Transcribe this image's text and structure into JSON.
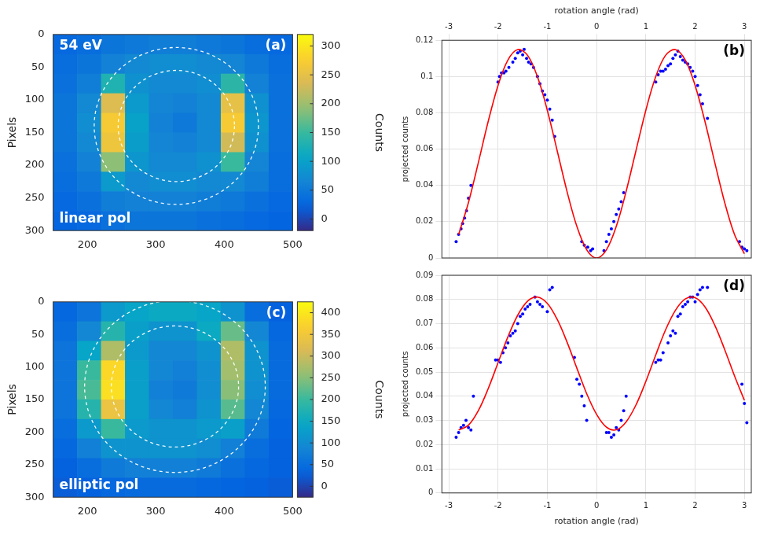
{
  "chart_data": [
    {
      "type": "heatmap",
      "panel": "(a)",
      "energy": "54 eV",
      "polarization": "linear pol",
      "y_label": "Pixels",
      "grid": false,
      "xlim": [
        150,
        500
      ],
      "xticks": [
        200,
        300,
        400,
        500
      ],
      "ylim": [
        300,
        0
      ],
      "yticks": [
        0,
        50,
        100,
        150,
        200,
        250,
        300
      ],
      "x_edges": [
        150,
        185,
        220,
        255,
        290,
        325,
        360,
        395,
        430,
        465,
        500
      ],
      "y_edges": [
        0,
        30,
        60,
        90,
        120,
        150,
        180,
        210,
        240,
        270,
        300
      ],
      "cells": [
        [
          30,
          35,
          45,
          50,
          55,
          55,
          50,
          45,
          35,
          30
        ],
        [
          35,
          45,
          60,
          70,
          75,
          75,
          70,
          65,
          50,
          35
        ],
        [
          40,
          55,
          130,
          80,
          70,
          70,
          75,
          140,
          60,
          40
        ],
        [
          45,
          70,
          240,
          90,
          65,
          60,
          70,
          250,
          80,
          40
        ],
        [
          45,
          75,
          270,
          100,
          60,
          50,
          70,
          270,
          85,
          40
        ],
        [
          45,
          70,
          260,
          95,
          65,
          60,
          70,
          230,
          80,
          40
        ],
        [
          40,
          60,
          190,
          85,
          70,
          70,
          80,
          150,
          65,
          35
        ],
        [
          35,
          50,
          90,
          70,
          75,
          75,
          70,
          70,
          55,
          35
        ],
        [
          30,
          40,
          55,
          60,
          60,
          60,
          55,
          50,
          40,
          30
        ],
        [
          25,
          30,
          40,
          45,
          45,
          45,
          40,
          35,
          30,
          25
        ]
      ],
      "colorbar": {
        "label": "Counts",
        "range": [
          -20,
          320
        ],
        "ticks": [
          0,
          50,
          100,
          150,
          200,
          250,
          300
        ]
      },
      "rings": [
        {
          "cx": 330,
          "cy": 140,
          "r": 120
        },
        {
          "cx": 330,
          "cy": 140,
          "r": 85
        }
      ]
    },
    {
      "type": "scatter",
      "panel": "(b)",
      "x_label": "rotation angle (rad)",
      "y_label": "projected counts",
      "grid": true,
      "xlim": [
        -3.14,
        3.14
      ],
      "xticks": [
        -3,
        -2,
        -1,
        0,
        1,
        2,
        3
      ],
      "ylim": [
        0,
        0.12
      ],
      "yticks": [
        0,
        0.02,
        0.04,
        0.06,
        0.08,
        0.1,
        0.12
      ],
      "series": [
        {
          "type": "scatter",
          "marker": "dot",
          "color": "#0000ff",
          "x": [
            -2.85,
            -2.8,
            -2.75,
            -2.72,
            -2.68,
            -2.64,
            -2.6,
            -2.55,
            -2.0,
            -1.97,
            -1.93,
            -1.88,
            -1.84,
            -1.78,
            -1.7,
            -1.65,
            -1.6,
            -1.55,
            -1.5,
            -1.47,
            -1.42,
            -1.38,
            -1.33,
            -1.28,
            -1.2,
            -1.15,
            -1.1,
            -1.05,
            -1.0,
            -0.95,
            -0.9,
            -0.85,
            -0.3,
            -0.25,
            -0.18,
            -0.12,
            -0.08,
            0.15,
            0.2,
            0.25,
            0.3,
            0.35,
            0.4,
            0.45,
            0.5,
            0.55,
            1.2,
            1.25,
            1.3,
            1.35,
            1.4,
            1.45,
            1.5,
            1.55,
            1.6,
            1.65,
            1.7,
            1.75,
            1.8,
            1.85,
            1.9,
            1.95,
            2.0,
            2.05,
            2.1,
            2.15,
            2.25,
            2.9,
            2.95,
            3.0,
            3.05
          ],
          "values": [
            0.009,
            0.013,
            0.016,
            0.019,
            0.022,
            0.026,
            0.033,
            0.04,
            0.097,
            0.1,
            0.102,
            0.102,
            0.103,
            0.105,
            0.108,
            0.11,
            0.113,
            0.114,
            0.112,
            0.115,
            0.11,
            0.108,
            0.107,
            0.105,
            0.1,
            0.096,
            0.092,
            0.09,
            0.087,
            0.082,
            0.076,
            0.067,
            0.009,
            0.007,
            0.006,
            0.004,
            0.005,
            0.004,
            0.009,
            0.013,
            0.016,
            0.02,
            0.024,
            0.027,
            0.031,
            0.036,
            0.097,
            0.101,
            0.103,
            0.103,
            0.104,
            0.106,
            0.107,
            0.11,
            0.112,
            0.114,
            0.111,
            0.109,
            0.108,
            0.107,
            0.105,
            0.103,
            0.1,
            0.095,
            0.09,
            0.085,
            0.077,
            0.009,
            0.006,
            0.005,
            0.004
          ]
        },
        {
          "type": "line",
          "line_style": "solid",
          "color": "#ff0000",
          "x": [
            -2.8,
            -2.6,
            -2.4,
            -2.2,
            -2.0,
            -1.8,
            -1.6,
            -1.4,
            -1.2,
            -1.0,
            -0.8,
            -0.6,
            -0.4,
            -0.2,
            0,
            0.2,
            0.4,
            0.6,
            0.8,
            1.0,
            1.2,
            1.4,
            1.6,
            1.8,
            2.0,
            2.2,
            2.4,
            2.6,
            2.8,
            3.0
          ],
          "values": [
            0.0129,
            0.0306,
            0.0525,
            0.0752,
            0.0951,
            0.1091,
            0.1149,
            0.1117,
            0.0999,
            0.0814,
            0.0592,
            0.0367,
            0.0174,
            0.0045,
            0,
            0.0045,
            0.0174,
            0.0367,
            0.0592,
            0.0814,
            0.0999,
            0.1117,
            0.1149,
            0.1091,
            0.0951,
            0.0752,
            0.0525,
            0.0306,
            0.0129,
            0.0023
          ]
        }
      ]
    },
    {
      "type": "heatmap",
      "panel": "(c)",
      "polarization": "elliptic pol",
      "y_label": "Pixels",
      "grid": false,
      "xlim": [
        150,
        500
      ],
      "xticks": [
        200,
        300,
        400,
        500
      ],
      "ylim": [
        300,
        0
      ],
      "yticks": [
        0,
        50,
        100,
        150,
        200,
        250,
        300
      ],
      "x_edges": [
        150,
        185,
        220,
        255,
        290,
        325,
        360,
        395,
        430,
        465,
        500
      ],
      "y_edges": [
        0,
        30,
        60,
        90,
        120,
        150,
        180,
        210,
        240,
        270,
        300
      ],
      "cells": [
        [
          40,
          60,
          120,
          140,
          150,
          150,
          140,
          110,
          50,
          30
        ],
        [
          50,
          90,
          180,
          130,
          110,
          110,
          150,
          230,
          90,
          40
        ],
        [
          60,
          140,
          280,
          120,
          90,
          90,
          110,
          280,
          110,
          45
        ],
        [
          60,
          200,
          380,
          130,
          90,
          80,
          100,
          270,
          110,
          45
        ],
        [
          60,
          210,
          390,
          130,
          80,
          70,
          100,
          250,
          100,
          45
        ],
        [
          60,
          180,
          340,
          130,
          90,
          80,
          110,
          220,
          90,
          40
        ],
        [
          50,
          120,
          200,
          120,
          110,
          110,
          120,
          130,
          70,
          35
        ],
        [
          40,
          80,
          110,
          110,
          110,
          110,
          100,
          80,
          50,
          30
        ],
        [
          30,
          50,
          70,
          80,
          80,
          80,
          70,
          55,
          40,
          30
        ],
        [
          25,
          30,
          40,
          45,
          45,
          45,
          40,
          35,
          30,
          25
        ]
      ],
      "colorbar": {
        "label": "Counts",
        "range": [
          -25,
          425
        ],
        "ticks": [
          0,
          50,
          100,
          150,
          200,
          250,
          300,
          350,
          400
        ]
      },
      "rings": [
        {
          "cx": 328,
          "cy": 130,
          "r": 132
        },
        {
          "cx": 328,
          "cy": 130,
          "r": 93
        }
      ]
    },
    {
      "type": "scatter",
      "panel": "(d)",
      "x_label": "rotation angle (rad)",
      "y_label": "projected counts",
      "grid": true,
      "xlim": [
        -3.14,
        3.14
      ],
      "xticks": [
        -3,
        -2,
        -1,
        0,
        1,
        2,
        3
      ],
      "ylim": [
        0,
        0.09
      ],
      "yticks": [
        0,
        0.01,
        0.02,
        0.03,
        0.04,
        0.05,
        0.06,
        0.07,
        0.08,
        0.09
      ],
      "series": [
        {
          "type": "scatter",
          "marker": "dot",
          "color": "#0000ff",
          "x": [
            -2.85,
            -2.8,
            -2.75,
            -2.7,
            -2.65,
            -2.6,
            -2.55,
            -2.5,
            -2.05,
            -2.0,
            -1.95,
            -1.9,
            -1.85,
            -1.8,
            -1.75,
            -1.7,
            -1.65,
            -1.6,
            -1.55,
            -1.5,
            -1.45,
            -1.4,
            -1.35,
            -1.25,
            -1.2,
            -1.15,
            -1.1,
            -1.0,
            -0.95,
            -0.9,
            -0.45,
            -0.4,
            -0.35,
            -0.3,
            -0.25,
            -0.2,
            0.2,
            0.25,
            0.3,
            0.35,
            0.4,
            0.45,
            0.5,
            0.55,
            0.6,
            1.2,
            1.25,
            1.3,
            1.35,
            1.45,
            1.5,
            1.55,
            1.6,
            1.65,
            1.7,
            1.75,
            1.8,
            1.85,
            1.9,
            1.95,
            2.0,
            2.05,
            2.1,
            2.15,
            2.25,
            2.95,
            3.0,
            3.05
          ],
          "values": [
            0.023,
            0.025,
            0.027,
            0.028,
            0.03,
            0.027,
            0.026,
            0.04,
            0.055,
            0.055,
            0.054,
            0.058,
            0.06,
            0.062,
            0.065,
            0.066,
            0.067,
            0.07,
            0.073,
            0.074,
            0.076,
            0.077,
            0.078,
            0.081,
            0.079,
            0.078,
            0.077,
            0.075,
            0.084,
            0.085,
            0.056,
            0.047,
            0.045,
            0.04,
            0.036,
            0.03,
            0.025,
            0.025,
            0.023,
            0.024,
            0.027,
            0.026,
            0.03,
            0.034,
            0.04,
            0.054,
            0.055,
            0.055,
            0.058,
            0.062,
            0.065,
            0.067,
            0.066,
            0.073,
            0.074,
            0.077,
            0.078,
            0.079,
            0.081,
            0.081,
            0.079,
            0.082,
            0.084,
            0.085,
            0.085,
            0.045,
            0.037,
            0.029
          ]
        },
        {
          "type": "line",
          "line_style": "solid",
          "color": "#ff0000",
          "x": [
            -2.8,
            -2.6,
            -2.4,
            -2.2,
            -2.0,
            -1.8,
            -1.6,
            -1.4,
            -1.2,
            -1.0,
            -0.8,
            -0.6,
            -0.4,
            -0.2,
            0,
            0.2,
            0.4,
            0.6,
            0.8,
            1.0,
            1.2,
            1.4,
            1.6,
            1.8,
            2.0,
            2.2,
            2.4,
            2.6,
            2.8,
            3.0
          ],
          "values": [
            0.026,
            0.028,
            0.034,
            0.0431,
            0.0538,
            0.0645,
            0.0735,
            0.0793,
            0.081,
            0.0784,
            0.0718,
            0.0624,
            0.0516,
            0.041,
            0.0325,
            0.0272,
            0.0261,
            0.0294,
            0.0364,
            0.0461,
            0.057,
            0.0674,
            0.0755,
            0.0802,
            0.0807,
            0.0769,
            0.0693,
            0.0593,
            0.0484,
            0.0383
          ]
        }
      ]
    }
  ]
}
